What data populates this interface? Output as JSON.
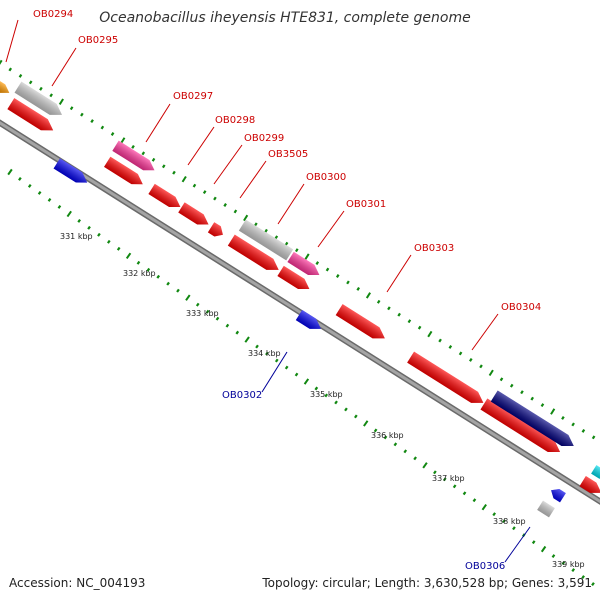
{
  "title": "Oceanobacillus iheyensis HTE831, complete genome",
  "footer": {
    "accession": "Accession: NC_004193",
    "summary": "Topology: circular; Length: 3,630,528 bp; Genes: 3,591"
  },
  "colors": {
    "forward_label": "#cc0000",
    "reverse_label": "#000099",
    "red": "#ff0000",
    "pink": "#ff3399",
    "gray": "#c8c8c8",
    "orange": "#ff9900",
    "blue": "#0000ee",
    "navy": "#000080",
    "cyan": "#00ddee",
    "backbone": "#888888",
    "tick": "#118811"
  },
  "scale_labels": [
    "331 kbp",
    "332 kbp",
    "333 kbp",
    "334 kbp",
    "335 kbp",
    "336 kbp",
    "337 kbp",
    "338 kbp",
    "339 kbp"
  ],
  "gene_labels": [
    {
      "id": "OB0294",
      "strand": "forward"
    },
    {
      "id": "OB0295",
      "strand": "forward"
    },
    {
      "id": "OB0297",
      "strand": "forward"
    },
    {
      "id": "OB0298",
      "strand": "forward"
    },
    {
      "id": "OB0299",
      "strand": "forward"
    },
    {
      "id": "OB3505",
      "strand": "forward"
    },
    {
      "id": "OB0300",
      "strand": "forward"
    },
    {
      "id": "OB0301",
      "strand": "forward"
    },
    {
      "id": "OB0303",
      "strand": "forward"
    },
    {
      "id": "OB0304",
      "strand": "forward"
    },
    {
      "id": "OB0302",
      "strand": "reverse"
    },
    {
      "id": "OB0306",
      "strand": "reverse"
    }
  ],
  "features": [
    {
      "track": "forward-outer",
      "color": "orange"
    },
    {
      "track": "forward-outer",
      "color": "gray"
    },
    {
      "track": "forward-inner",
      "color": "red"
    },
    {
      "track": "forward-inner",
      "color": "red"
    },
    {
      "track": "forward-outer",
      "color": "pink"
    },
    {
      "track": "forward-inner",
      "color": "red"
    },
    {
      "track": "forward-inner",
      "color": "red"
    },
    {
      "track": "forward-inner",
      "color": "red"
    },
    {
      "track": "forward-inner",
      "color": "red"
    },
    {
      "track": "forward-outer",
      "color": "gray"
    },
    {
      "track": "forward-outer",
      "color": "pink"
    },
    {
      "track": "forward-inner",
      "color": "red"
    },
    {
      "track": "forward-inner",
      "color": "red"
    },
    {
      "track": "forward-inner",
      "color": "red"
    },
    {
      "track": "forward-inner",
      "color": "red"
    },
    {
      "track": "forward-inner",
      "color": "red"
    },
    {
      "track": "forward-outer",
      "color": "navy"
    },
    {
      "track": "forward-inner",
      "color": "red"
    },
    {
      "track": "forward-outer",
      "color": "cyan"
    },
    {
      "track": "reverse",
      "color": "blue"
    },
    {
      "track": "reverse",
      "color": "blue"
    },
    {
      "track": "reverse",
      "color": "blue"
    },
    {
      "track": "reverse",
      "color": "gray"
    }
  ]
}
